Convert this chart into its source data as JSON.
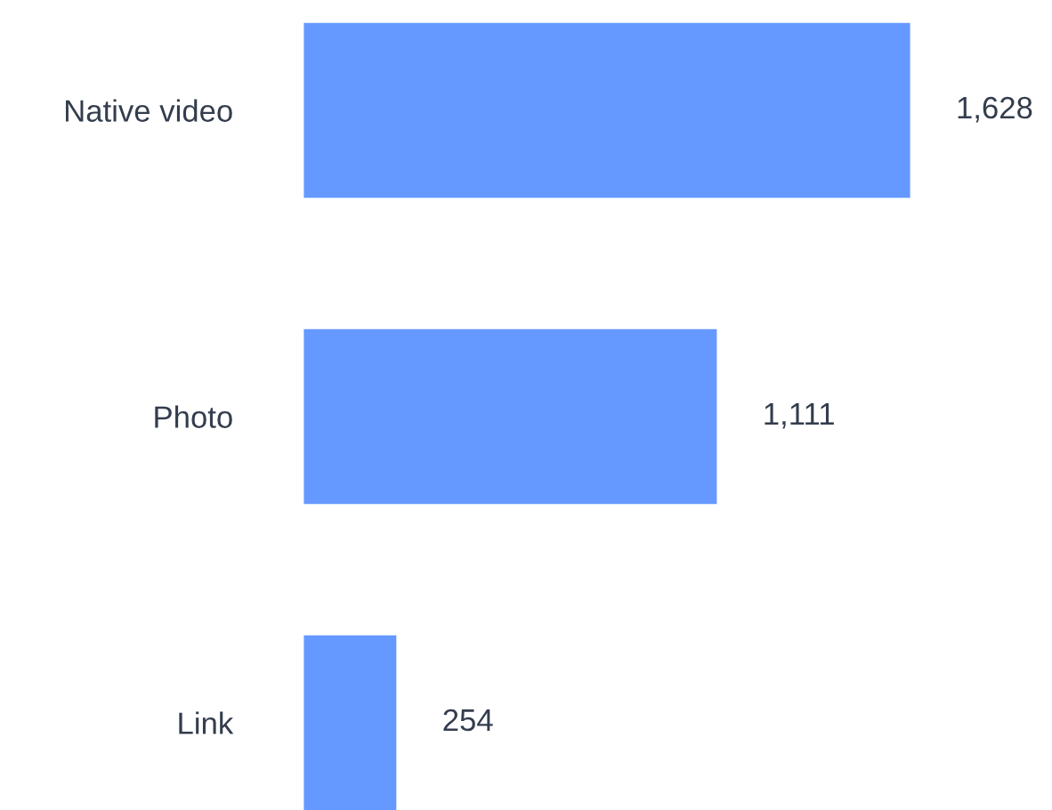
{
  "chart_data": {
    "type": "bar",
    "orientation": "horizontal",
    "categories": [
      "Native video",
      "Photo",
      "Link"
    ],
    "values": [
      1628,
      1111,
      254
    ],
    "value_labels": [
      "1,628",
      "1,111",
      "254"
    ],
    "color": "#6699ff",
    "grid": false
  }
}
